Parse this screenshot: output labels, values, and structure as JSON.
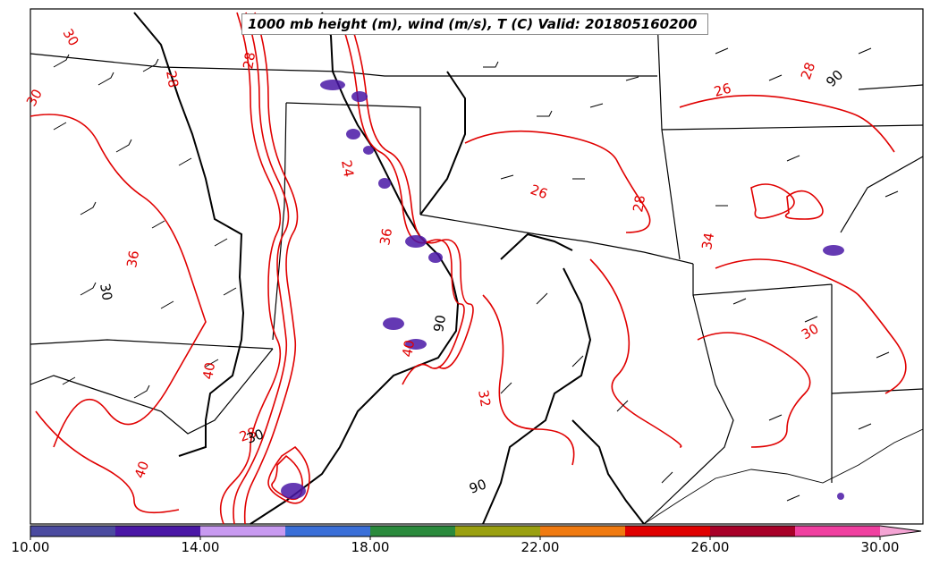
{
  "title": "1000 mb height (m), wind (m/s), T (C) Valid: 201805160200",
  "colorbar": {
    "tick_labels": [
      "10.00",
      "14.00",
      "18.00",
      "22.00",
      "26.00",
      "30.00"
    ],
    "colors": [
      "#4b4ba0",
      "#4a17a6",
      "#c89af0",
      "#3a6fd8",
      "#2a8a3c",
      "#9aa010",
      "#f07a10",
      "#e00000",
      "#a80028",
      "#f040a0"
    ],
    "extend_color": "#f4a4d4"
  },
  "contour_labels": {
    "temperature": [
      "30",
      "28",
      "26",
      "26",
      "28",
      "28",
      "36",
      "30",
      "32",
      "40",
      "40",
      "28",
      "34",
      "30",
      "36",
      "40",
      "24",
      "28"
    ],
    "height": [
      "90",
      "90",
      "30",
      "30",
      "90"
    ]
  },
  "colors": {
    "temperature_contour": "#e00000",
    "height_contour": "#000000",
    "state_border": "#000000"
  }
}
